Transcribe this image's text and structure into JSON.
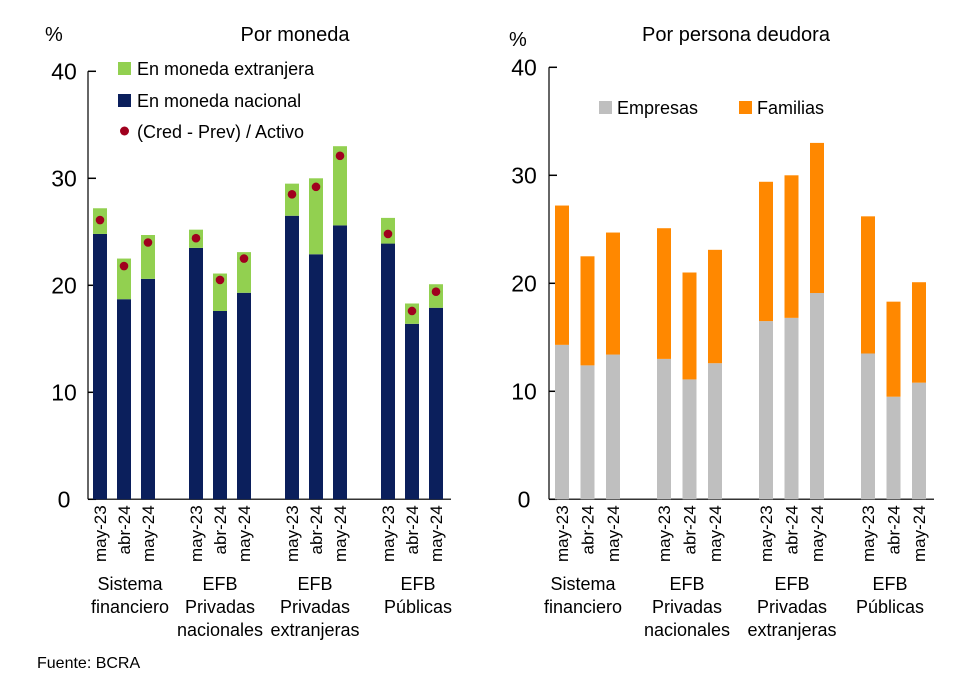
{
  "source": "Fuente: BCRA",
  "colors": {
    "extranjera": "#92d050",
    "nacional": "#0b1f5c",
    "ratio": "#a0001e",
    "empresas": "#bfbfbf",
    "familias": "#ff8800"
  },
  "chart_data": [
    {
      "type": "bar",
      "stacked": true,
      "title": "Por moneda",
      "ylabel": "%",
      "ylim": [
        0,
        40
      ],
      "yticks": [
        "0",
        "10",
        "20",
        "30",
        "40"
      ],
      "legend_placement": "top-left",
      "categories": [
        "may-23",
        "abr-24",
        "may-24",
        "may-23",
        "abr-24",
        "may-24",
        "may-23",
        "abr-24",
        "may-24",
        "may-23",
        "abr-24",
        "may-24"
      ],
      "groups": [
        {
          "label": [
            "Sistema",
            "financiero"
          ]
        },
        {
          "label": [
            "EFB",
            "Privadas",
            "nacionales"
          ]
        },
        {
          "label": [
            "EFB",
            "Privadas",
            "extranjeras"
          ]
        },
        {
          "label": [
            "EFB",
            "Públicas"
          ]
        }
      ],
      "series": [
        {
          "name": "En moneda nacional",
          "kind": "bar",
          "values": [
            24.8,
            18.7,
            20.6,
            23.5,
            17.6,
            19.3,
            26.5,
            22.9,
            25.6,
            23.9,
            16.4,
            17.9
          ]
        },
        {
          "name": "En moneda extranjera",
          "kind": "bar",
          "values": [
            2.4,
            3.8,
            4.1,
            1.7,
            3.5,
            3.8,
            3.0,
            7.1,
            7.4,
            2.4,
            1.9,
            2.2
          ]
        },
        {
          "name": "(Cred - Prev) / Activo",
          "kind": "dot",
          "values": [
            26.1,
            21.8,
            24.0,
            24.4,
            20.5,
            22.5,
            28.5,
            29.2,
            32.1,
            24.8,
            17.6,
            19.4
          ]
        }
      ]
    },
    {
      "type": "bar",
      "stacked": true,
      "title": "Por persona deudora",
      "ylabel": "%",
      "ylim": [
        0,
        40
      ],
      "yticks": [
        "0",
        "10",
        "20",
        "30",
        "40"
      ],
      "legend_placement": "top",
      "categories": [
        "may-23",
        "abr-24",
        "may-24",
        "may-23",
        "abr-24",
        "may-24",
        "may-23",
        "abr-24",
        "may-24",
        "may-23",
        "abr-24",
        "may-24"
      ],
      "groups": [
        {
          "label": [
            "Sistema",
            "financiero"
          ]
        },
        {
          "label": [
            "EFB",
            "Privadas",
            "nacionales"
          ]
        },
        {
          "label": [
            "EFB",
            "Privadas",
            "extranjeras"
          ]
        },
        {
          "label": [
            "EFB",
            "Públicas"
          ]
        }
      ],
      "series": [
        {
          "name": "Empresas",
          "kind": "bar",
          "values": [
            14.3,
            12.4,
            13.4,
            13.0,
            11.1,
            12.6,
            16.5,
            16.8,
            19.1,
            13.5,
            9.5,
            10.8
          ]
        },
        {
          "name": "Familias",
          "kind": "bar",
          "values": [
            12.9,
            10.1,
            11.3,
            12.1,
            9.9,
            10.5,
            12.9,
            13.2,
            13.9,
            12.7,
            8.8,
            9.3
          ]
        }
      ]
    }
  ]
}
